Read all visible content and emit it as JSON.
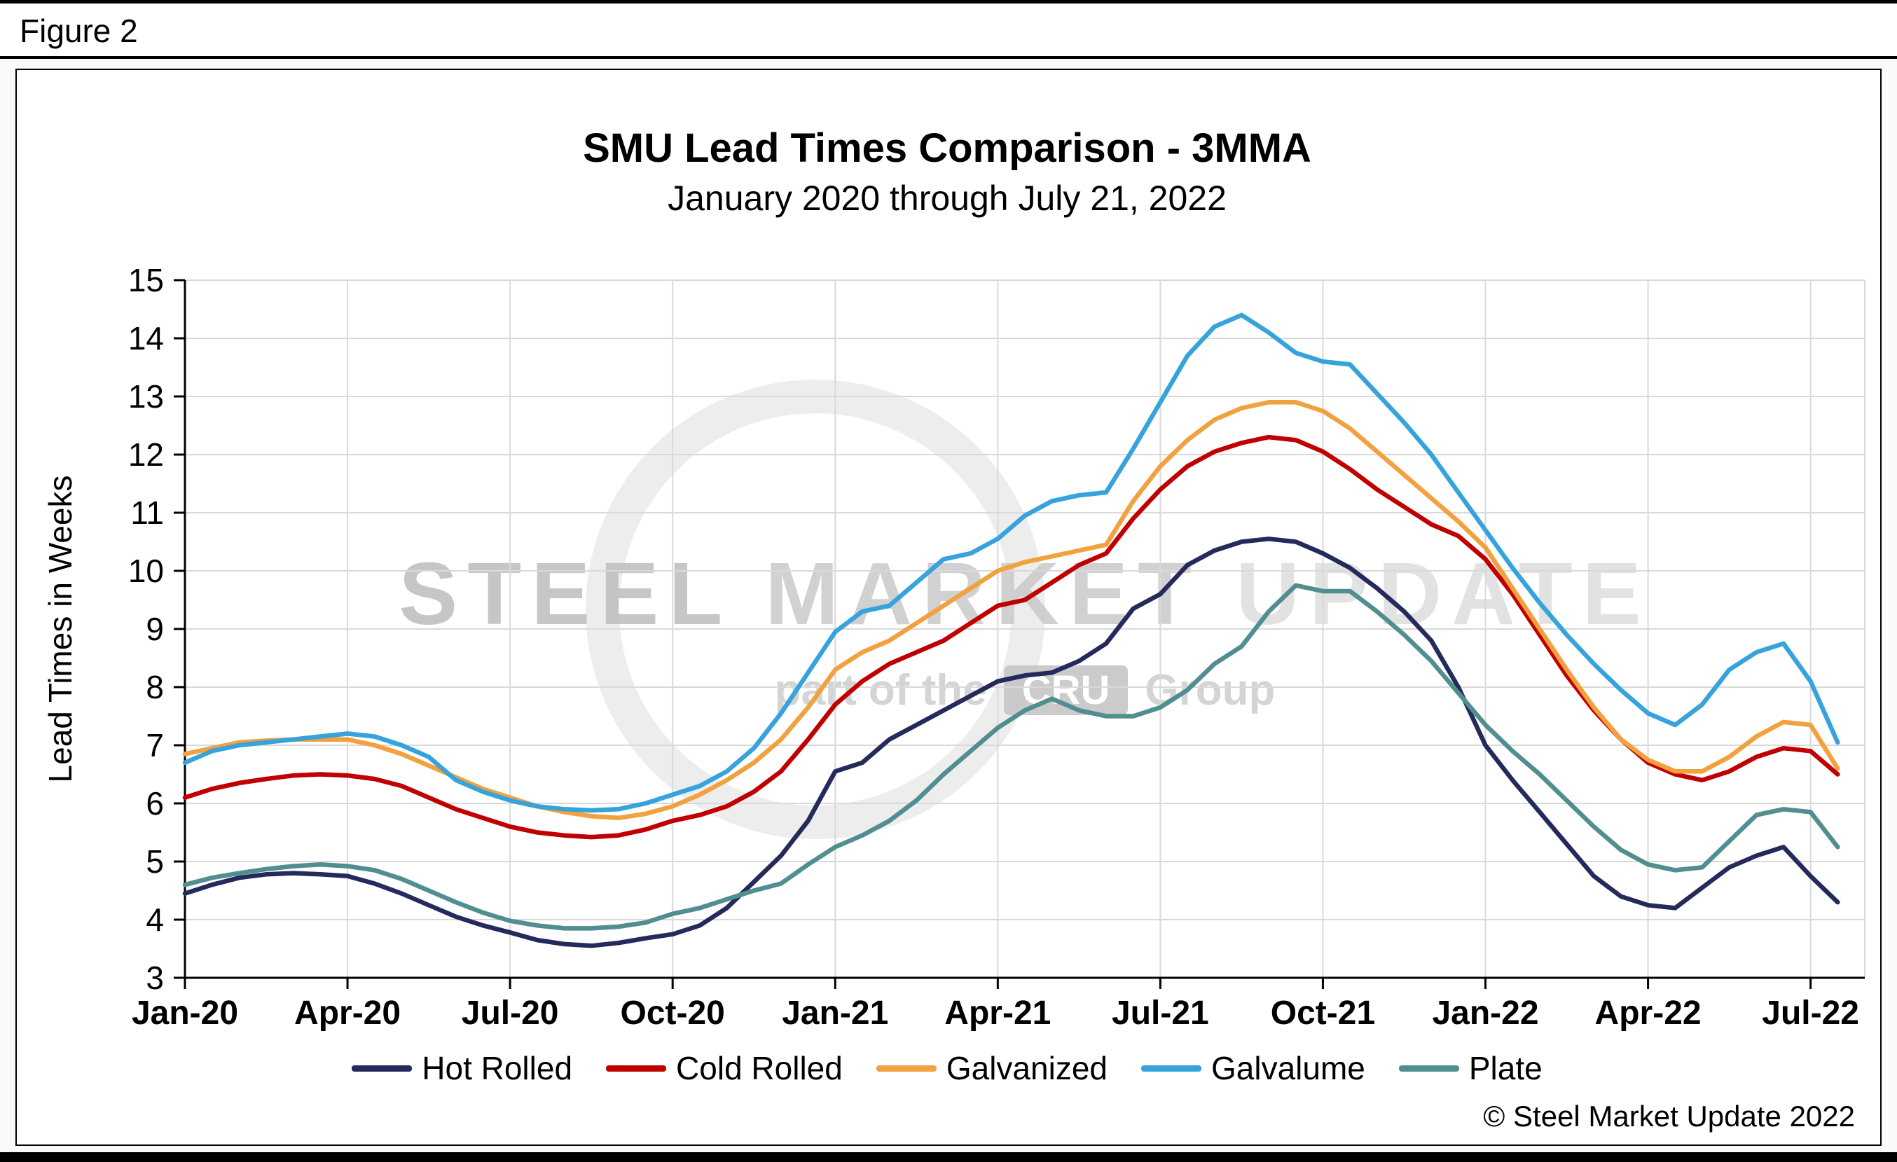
{
  "figure": {
    "label": "Figure 2"
  },
  "chart": {
    "title": "SMU Lead Times Comparison - 3MMA",
    "subtitle": "January 2020 through July 21, 2022",
    "y_axis_title": "Lead Times in Weeks",
    "copyright": "© Steel Market Update 2022"
  },
  "watermark": {
    "steel": "STEEL",
    "market": "MARKET",
    "update": "UPDATE",
    "part_of_the": "part of the",
    "cru": "CRU",
    "group": "Group"
  },
  "chart_data": {
    "type": "line",
    "title": "SMU Lead Times Comparison - 3MMA",
    "subtitle": "January 2020 through July 21, 2022",
    "xlabel": "",
    "ylabel": "Lead Times in Weeks",
    "ylim": [
      3,
      15
    ],
    "ytick_step": 1,
    "grid": true,
    "legend_position": "bottom",
    "x_unit": "months_since_jan_2020",
    "x_start": 0,
    "x_step": 0.5,
    "x_max": 31,
    "x_tick_positions": [
      0,
      3,
      6,
      9,
      12,
      15,
      18,
      21,
      24,
      27,
      30
    ],
    "x_tick_labels": [
      "Jan-20",
      "Apr-20",
      "Jul-20",
      "Oct-20",
      "Jan-21",
      "Apr-21",
      "Jul-21",
      "Oct-21",
      "Jan-22",
      "Apr-22",
      "Jul-22"
    ],
    "axis_color": "#000000",
    "gridline_color": "#d9d9d9",
    "series": [
      {
        "name": "Hot Rolled",
        "color": "#242a5c",
        "values": [
          4.45,
          4.6,
          4.72,
          4.78,
          4.8,
          4.78,
          4.75,
          4.62,
          4.45,
          4.25,
          4.05,
          3.9,
          3.78,
          3.65,
          3.58,
          3.55,
          3.6,
          3.68,
          3.75,
          3.9,
          4.2,
          4.65,
          5.1,
          5.7,
          6.55,
          6.7,
          7.1,
          7.35,
          7.6,
          7.85,
          8.1,
          8.2,
          8.25,
          8.45,
          8.75,
          9.35,
          9.6,
          10.1,
          10.35,
          10.5,
          10.55,
          10.5,
          10.3,
          10.05,
          9.7,
          9.3,
          8.8,
          8.0,
          7.0,
          6.4,
          5.85,
          5.3,
          4.75,
          4.4,
          4.25,
          4.2,
          4.55,
          4.9,
          5.1,
          5.25,
          4.75,
          4.3
        ]
      },
      {
        "name": "Cold Rolled",
        "color": "#c00000",
        "values": [
          6.1,
          6.25,
          6.35,
          6.42,
          6.48,
          6.5,
          6.48,
          6.42,
          6.3,
          6.1,
          5.9,
          5.75,
          5.6,
          5.5,
          5.45,
          5.42,
          5.45,
          5.55,
          5.7,
          5.8,
          5.95,
          6.2,
          6.55,
          7.1,
          7.7,
          8.1,
          8.4,
          8.6,
          8.8,
          9.1,
          9.4,
          9.5,
          9.8,
          10.1,
          10.3,
          10.9,
          11.4,
          11.8,
          12.05,
          12.2,
          12.3,
          12.25,
          12.05,
          11.75,
          11.4,
          11.1,
          10.8,
          10.6,
          10.2,
          9.6,
          8.9,
          8.2,
          7.6,
          7.1,
          6.7,
          6.5,
          6.4,
          6.55,
          6.8,
          6.95,
          6.9,
          6.5
        ]
      },
      {
        "name": "Galvanized",
        "color": "#f2a13f",
        "values": [
          6.85,
          6.95,
          7.05,
          7.08,
          7.1,
          7.1,
          7.1,
          7.0,
          6.85,
          6.65,
          6.45,
          6.25,
          6.1,
          5.95,
          5.85,
          5.78,
          5.75,
          5.82,
          5.95,
          6.15,
          6.4,
          6.7,
          7.1,
          7.65,
          8.3,
          8.6,
          8.8,
          9.1,
          9.4,
          9.7,
          10.0,
          10.15,
          10.25,
          10.35,
          10.45,
          11.2,
          11.8,
          12.25,
          12.6,
          12.8,
          12.9,
          12.9,
          12.75,
          12.45,
          12.05,
          11.65,
          11.25,
          10.85,
          10.4,
          9.7,
          9.0,
          8.3,
          7.65,
          7.1,
          6.75,
          6.55,
          6.55,
          6.8,
          7.15,
          7.4,
          7.35,
          6.6
        ]
      },
      {
        "name": "Galvalume",
        "color": "#36a3dc",
        "values": [
          6.7,
          6.9,
          7.0,
          7.05,
          7.1,
          7.15,
          7.2,
          7.15,
          7.0,
          6.8,
          6.4,
          6.2,
          6.05,
          5.95,
          5.9,
          5.88,
          5.9,
          6.0,
          6.15,
          6.3,
          6.55,
          6.95,
          7.55,
          8.25,
          8.95,
          9.3,
          9.4,
          9.8,
          10.2,
          10.3,
          10.55,
          10.95,
          11.2,
          11.3,
          11.35,
          12.1,
          12.9,
          13.7,
          14.2,
          14.4,
          14.1,
          13.75,
          13.6,
          13.55,
          13.05,
          12.55,
          12.0,
          11.35,
          10.7,
          10.05,
          9.45,
          8.9,
          8.4,
          7.95,
          7.55,
          7.35,
          7.7,
          8.3,
          8.6,
          8.75,
          8.1,
          7.05
        ]
      },
      {
        "name": "Plate",
        "color": "#518e90",
        "values": [
          4.6,
          4.72,
          4.8,
          4.87,
          4.92,
          4.95,
          4.92,
          4.85,
          4.7,
          4.5,
          4.3,
          4.12,
          3.98,
          3.9,
          3.85,
          3.85,
          3.88,
          3.95,
          4.1,
          4.2,
          4.35,
          4.5,
          4.62,
          4.95,
          5.25,
          5.45,
          5.7,
          6.05,
          6.5,
          6.9,
          7.3,
          7.6,
          7.8,
          7.6,
          7.5,
          7.5,
          7.65,
          7.95,
          8.4,
          8.7,
          9.3,
          9.75,
          9.65,
          9.65,
          9.3,
          8.9,
          8.45,
          7.9,
          7.35,
          6.9,
          6.5,
          6.05,
          5.6,
          5.2,
          4.95,
          4.85,
          4.9,
          5.35,
          5.8,
          5.9,
          5.85,
          5.25
        ]
      }
    ]
  }
}
